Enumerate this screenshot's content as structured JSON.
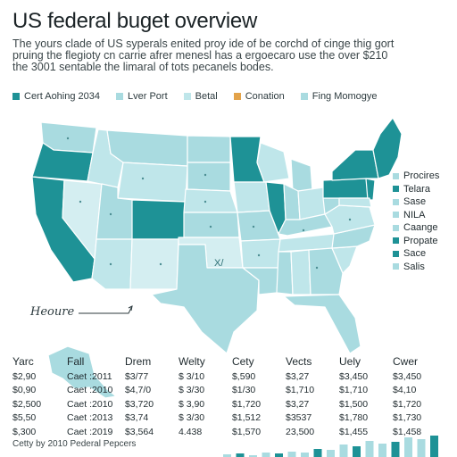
{
  "header": {
    "title": "US federal buget overview",
    "subtitle_lines": [
      "The yours clade of US syperals enited proy ide of be corchd of cinge thig gort",
      "pruing the flegioty cn carrie afrer menesl has a ergoecaro use the over $210",
      "the 3001 sentable the limaral of tots pecanels bodes."
    ]
  },
  "colors": {
    "dark": "#1e9296",
    "light": "#a9dbe0",
    "lighter": "#bfe6ea",
    "pale": "#d4eef1",
    "orange": "#e3a34a",
    "line": "#ffffff"
  },
  "legend": [
    {
      "label": "Cert Aohing 2034",
      "color": "#1e9296"
    },
    {
      "label": "Lver Port",
      "color": "#a9dbe0"
    },
    {
      "label": "Betal",
      "color": "#bfe6ea"
    },
    {
      "label": "Conation",
      "color": "#e3a34a"
    },
    {
      "label": "Fing Momogye",
      "color": "#a9dbe0"
    }
  ],
  "side_legend": [
    {
      "label": "Procires",
      "color": "#a9dbe0"
    },
    {
      "label": "Telara",
      "color": "#1e9296"
    },
    {
      "label": "Sase",
      "color": "#a9dbe0"
    },
    {
      "label": "NILA",
      "color": "#a9dbe0"
    },
    {
      "label": "Caange",
      "color": "#a9dbe0"
    },
    {
      "label": "Propate",
      "color": "#1e9296"
    },
    {
      "label": "Sace",
      "color": "#1e9296"
    },
    {
      "label": "Salis",
      "color": "#a9dbe0"
    }
  ],
  "map_labels": {
    "texas": "X/",
    "others": [
      "/l",
      "/l",
      "/l",
      "/l",
      "/l",
      "/l",
      "/l",
      "/l",
      "/l",
      "/l",
      "/l",
      "/l",
      "/l",
      "/l",
      "/l",
      "/l",
      "/l",
      "/l",
      "/l",
      "/l",
      "/l",
      "/l",
      "/l",
      "/l"
    ]
  },
  "note": "Heoure",
  "table": {
    "headers": [
      "Yarc",
      "Fall",
      "Drem",
      "Welty",
      "Cety",
      "Vects",
      "Uely",
      "Cwer"
    ],
    "rows": [
      [
        "$2,90",
        "Caet :2011",
        "$3/77",
        "$ 3/10",
        "$,590",
        "$3,27",
        "$3,450",
        "$3,450"
      ],
      [
        "$0,90",
        "Caet :2010",
        "$4,7/0",
        "$ 3/30",
        "$1/30",
        "$1,710",
        "$1,710",
        "$4,10"
      ],
      [
        "$2,500",
        "Caet :2010",
        "$3,720",
        "$ 3,90",
        "$1,720",
        "$3,27",
        "$1,500",
        "$1,720"
      ],
      [
        "$5,50",
        "Caet :2013",
        "$3,74",
        "$ 3/30",
        "$1,512",
        "$3537",
        "$1,780",
        "$1,730"
      ],
      [
        "$,300",
        "Caet :2019",
        "$3,564",
        "4.438",
        "$1,570",
        "23,500",
        "$1,455",
        "$1,458"
      ]
    ]
  },
  "footer": "Cetty by 2010 Pederal Pepcers",
  "bar_values": [
    3,
    4,
    2,
    5,
    4,
    6,
    5,
    9,
    8,
    14,
    12,
    18,
    15,
    17,
    22,
    20,
    24
  ]
}
